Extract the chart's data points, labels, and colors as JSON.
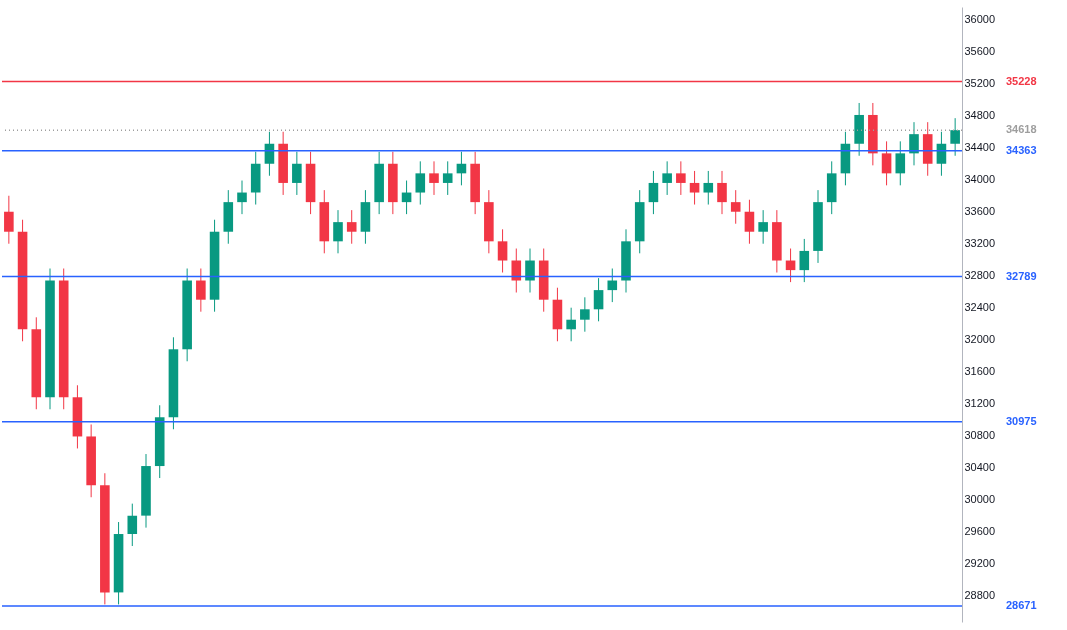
{
  "chart_data": {
    "type": "candlestick",
    "categories": [
      null,
      null,
      null,
      null,
      null,
      null,
      null,
      null,
      null,
      null,
      null,
      null,
      null,
      null,
      null,
      null,
      null,
      null,
      null,
      null,
      null,
      null,
      null,
      null,
      null,
      null,
      null,
      null,
      null,
      null,
      null,
      null,
      null,
      null,
      null,
      null,
      null,
      null,
      null,
      null,
      null,
      null,
      null,
      null,
      null,
      null,
      null,
      null,
      null,
      null,
      null,
      null,
      null,
      null,
      null,
      null,
      null,
      null,
      null,
      null,
      null,
      null,
      null,
      null,
      null,
      null,
      null,
      null,
      null,
      null
    ],
    "ohlc": [
      [
        33600,
        33800,
        33200,
        33350
      ],
      [
        33350,
        33500,
        31980,
        32130
      ],
      [
        32130,
        32280,
        31130,
        31280
      ],
      [
        31280,
        32890,
        31130,
        32740
      ],
      [
        32740,
        32890,
        31130,
        31280
      ],
      [
        31280,
        31430,
        30640,
        30790
      ],
      [
        30790,
        30940,
        30030,
        30180
      ],
      [
        30180,
        30330,
        28690,
        28840
      ],
      [
        28840,
        29720,
        28690,
        29570
      ],
      [
        29570,
        29950,
        29420,
        29800
      ],
      [
        29800,
        30570,
        29650,
        30420
      ],
      [
        30420,
        31180,
        30270,
        31030
      ],
      [
        31030,
        32030,
        30880,
        31880
      ],
      [
        31880,
        32890,
        31730,
        32740
      ],
      [
        32740,
        32890,
        32350,
        32500
      ],
      [
        32500,
        33500,
        32350,
        33350
      ],
      [
        33350,
        33870,
        33200,
        33720
      ],
      [
        33720,
        33990,
        33570,
        33840
      ],
      [
        33840,
        34350,
        33690,
        34200
      ],
      [
        34200,
        34600,
        34050,
        34450
      ],
      [
        34450,
        34600,
        33810,
        33960
      ],
      [
        33960,
        34350,
        33810,
        34200
      ],
      [
        34200,
        34350,
        33570,
        33720
      ],
      [
        33720,
        33870,
        33080,
        33230
      ],
      [
        33230,
        33620,
        33080,
        33470
      ],
      [
        33470,
        33620,
        33200,
        33350
      ],
      [
        33350,
        33870,
        33200,
        33720
      ],
      [
        33720,
        34350,
        33570,
        34200
      ],
      [
        34200,
        34350,
        33570,
        33720
      ],
      [
        33720,
        33990,
        33570,
        33840
      ],
      [
        33840,
        34230,
        33690,
        34080
      ],
      [
        34080,
        34230,
        33810,
        33960
      ],
      [
        33960,
        34230,
        33810,
        34080
      ],
      [
        34080,
        34350,
        33930,
        34200
      ],
      [
        34200,
        34350,
        33570,
        33720
      ],
      [
        33720,
        33870,
        33080,
        33230
      ],
      [
        33230,
        33380,
        32840,
        32990
      ],
      [
        32990,
        33140,
        32590,
        32740
      ],
      [
        32740,
        33140,
        32590,
        32990
      ],
      [
        32990,
        33140,
        32350,
        32500
      ],
      [
        32500,
        32650,
        31980,
        32130
      ],
      [
        32130,
        32400,
        31980,
        32250
      ],
      [
        32250,
        32530,
        32100,
        32380
      ],
      [
        32380,
        32770,
        32230,
        32620
      ],
      [
        32620,
        32890,
        32470,
        32740
      ],
      [
        32740,
        33380,
        32590,
        33230
      ],
      [
        33230,
        33870,
        33080,
        33720
      ],
      [
        33720,
        34110,
        33570,
        33960
      ],
      [
        33960,
        34230,
        33810,
        34080
      ],
      [
        34080,
        34230,
        33810,
        33960
      ],
      [
        33960,
        34110,
        33690,
        33840
      ],
      [
        33840,
        34110,
        33690,
        33960
      ],
      [
        33960,
        34110,
        33570,
        33720
      ],
      [
        33720,
        33870,
        33450,
        33600
      ],
      [
        33600,
        33750,
        33200,
        33350
      ],
      [
        33350,
        33620,
        33200,
        33470
      ],
      [
        33470,
        33620,
        32840,
        32990
      ],
      [
        32990,
        33140,
        32720,
        32870
      ],
      [
        32870,
        33260,
        32720,
        33110
      ],
      [
        33110,
        33870,
        32960,
        33720
      ],
      [
        33720,
        34230,
        33570,
        34080
      ],
      [
        34080,
        34600,
        33930,
        34450
      ],
      [
        34450,
        34960,
        34300,
        34810
      ],
      [
        34810,
        34960,
        34180,
        34330
      ],
      [
        34330,
        34480,
        33930,
        34080
      ],
      [
        34080,
        34480,
        33930,
        34330
      ],
      [
        34330,
        34720,
        34180,
        34570
      ],
      [
        34570,
        34720,
        34050,
        34200
      ],
      [
        34200,
        34600,
        34050,
        34450
      ],
      [
        34450,
        34770,
        34300,
        34620
      ]
    ],
    "ylim": [
      28470,
      36160
    ],
    "yticks": [
      28800,
      29200,
      29600,
      30000,
      30400,
      30800,
      31200,
      31600,
      32000,
      32400,
      32800,
      33200,
      33600,
      34000,
      34400,
      34800,
      35200,
      35600,
      36000
    ],
    "ref_lines": [
      {
        "axis": "y",
        "value": 35228,
        "label": "35228",
        "color": "#f23645"
      },
      {
        "axis": "y",
        "value": 34618,
        "label": "34618",
        "color": "#9e9e9e",
        "line_style": "dotted"
      },
      {
        "axis": "y",
        "value": 34363,
        "label": "34363",
        "color": "#2962ff"
      },
      {
        "axis": "y",
        "value": 32789,
        "label": "32789",
        "color": "#2962ff"
      },
      {
        "axis": "y",
        "value": 30975,
        "label": "30975",
        "color": "#2962ff"
      },
      {
        "axis": "y",
        "value": 28671,
        "label": "28671",
        "color": "#2962ff"
      }
    ],
    "tick_labels": "y"
  }
}
